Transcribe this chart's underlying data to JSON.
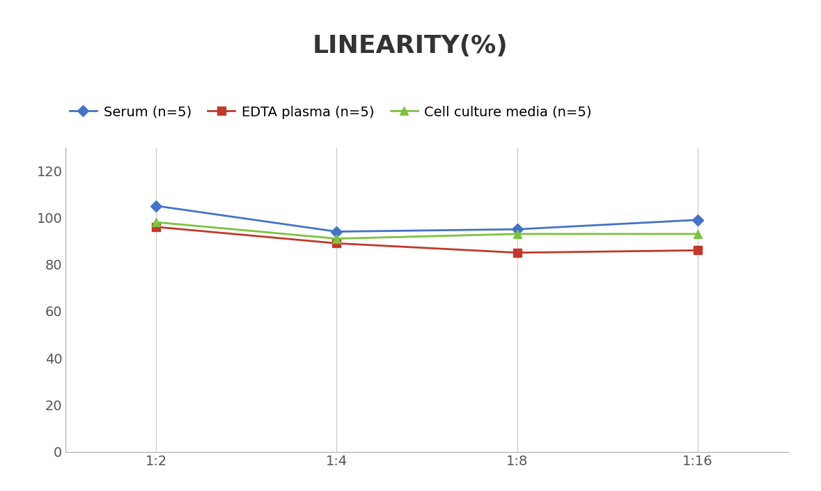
{
  "title": "LINEARITY(%)",
  "x_labels": [
    "1:2",
    "1:4",
    "1:8",
    "1:16"
  ],
  "x_positions": [
    0,
    1,
    2,
    3
  ],
  "series": [
    {
      "label": "Serum (n=5)",
      "values": [
        105,
        94,
        95,
        99
      ],
      "color": "#4472C4",
      "marker": "D",
      "marker_size": 8,
      "linewidth": 2
    },
    {
      "label": "EDTA plasma (n=5)",
      "values": [
        96,
        89,
        85,
        86
      ],
      "color": "#C0392B",
      "marker": "s",
      "marker_size": 8,
      "linewidth": 2
    },
    {
      "label": "Cell culture media (n=5)",
      "values": [
        98,
        91,
        93,
        93
      ],
      "color": "#7DC241",
      "marker": "^",
      "marker_size": 8,
      "linewidth": 2
    }
  ],
  "ylim": [
    0,
    130
  ],
  "yticks": [
    0,
    20,
    40,
    60,
    80,
    100,
    120
  ],
  "title_fontsize": 26,
  "legend_fontsize": 14,
  "tick_fontsize": 14,
  "background_color": "#ffffff",
  "grid_color": "#d0d0d0"
}
